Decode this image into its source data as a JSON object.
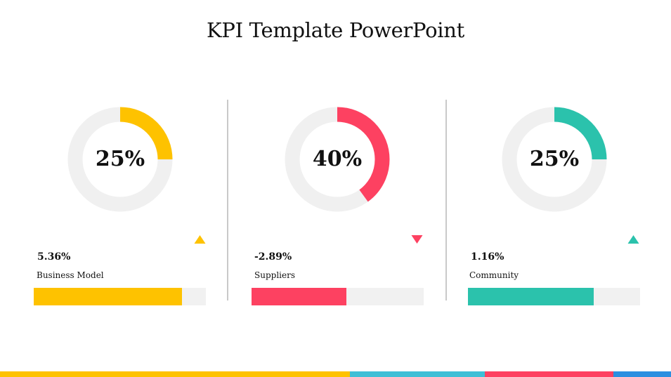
{
  "slide": {
    "title": "KPI Template PowerPoint"
  },
  "ring_track_color": "#f0f0f0",
  "bar_track_color": "#f1f1f1",
  "kpis": [
    {
      "percent_text": "25%",
      "percent": 25,
      "change": "5.36%",
      "trend": "up",
      "label": "Business Model",
      "bar_fill": 0.86,
      "color": "#fec200"
    },
    {
      "percent_text": "40%",
      "percent": 40,
      "change": "-2.89%",
      "trend": "down",
      "label": "Suppliers",
      "bar_fill": 0.55,
      "color": "#fd4161"
    },
    {
      "percent_text": "25%",
      "percent": 25,
      "change": "1.16%",
      "trend": "up",
      "label": "Community",
      "bar_fill": 0.73,
      "color": "#2bc2ac"
    }
  ],
  "footer_colors": [
    "#fec200",
    "#3ebfd6",
    "#fd4161",
    "#2b8fe0"
  ]
}
